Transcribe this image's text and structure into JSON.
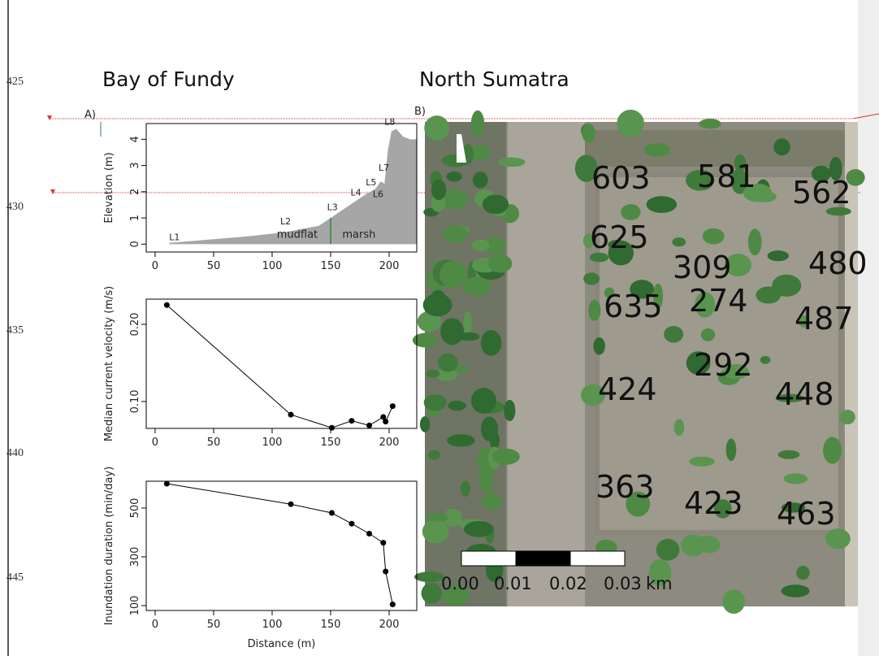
{
  "line_numbers": [
    425,
    430,
    435,
    440,
    445
  ],
  "headings": [
    "Bay of Fundy",
    "North Sumatra"
  ],
  "panel_labels": [
    "A)",
    "B)"
  ],
  "panel_a": {
    "charts": [
      {
        "type": "area",
        "y_label": "Elevation (m)",
        "xlim": [
          -7.6,
          223.6
        ],
        "ylim": [
          -0.3,
          4.6
        ],
        "xticks": [
          0,
          50,
          100,
          150,
          200
        ],
        "yticks": [
          0,
          1,
          2,
          3,
          4
        ],
        "x": [
          12,
          40,
          80,
          110,
          140,
          150,
          160,
          170,
          180,
          188,
          193,
          196,
          199,
          202,
          206,
          212,
          218,
          224
        ],
        "values": [
          0.05,
          0.15,
          0.3,
          0.45,
          0.7,
          1.0,
          1.3,
          1.6,
          1.9,
          2.1,
          2.4,
          2.3,
          3.6,
          4.3,
          4.4,
          4.1,
          4.0,
          4.0
        ],
        "annotations": [
          "L1",
          "L2",
          "L3",
          "L4",
          "L5",
          "L6",
          "L7",
          "L8",
          "mudflat",
          "marsh"
        ]
      },
      {
        "type": "line",
        "y_label": "Median current velocity (m/s)",
        "xlim": [
          -7.6,
          223.6
        ],
        "ylim": [
          0.0652,
          0.2326
        ],
        "xticks": [
          0,
          50,
          100,
          150,
          200
        ],
        "yticks": [
          {
            "value": 0.1,
            "label": "0.10"
          },
          {
            "value": 0.2,
            "label": "0.20"
          }
        ],
        "x": [
          10,
          116,
          151,
          168,
          183,
          195,
          197,
          203
        ],
        "values": [
          0.225,
          0.083,
          0.066,
          0.075,
          0.069,
          0.08,
          0.074,
          0.094
        ]
      },
      {
        "type": "line",
        "y_label": "Inundation duration (min/day)",
        "x_label": "Distance (m)",
        "xlim": [
          -7.6,
          223.6
        ],
        "ylim": [
          80,
          610
        ],
        "xticks": [
          0,
          50,
          100,
          150,
          200
        ],
        "yticks": [
          100,
          300,
          500
        ],
        "x": [
          10,
          116,
          151,
          168,
          183,
          195,
          197,
          203
        ],
        "values": [
          600,
          516,
          480,
          436,
          395,
          358,
          240,
          105
        ]
      }
    ]
  },
  "panel_b": {
    "plot_labels": [
      "603",
      "581",
      "562",
      "625",
      "309",
      "480",
      "635",
      "274",
      "487",
      "292",
      "424",
      "448",
      "363",
      "423",
      "463"
    ],
    "scale_labels": [
      "0.00",
      "0.01",
      "0.02",
      "0.03",
      "km"
    ]
  }
}
